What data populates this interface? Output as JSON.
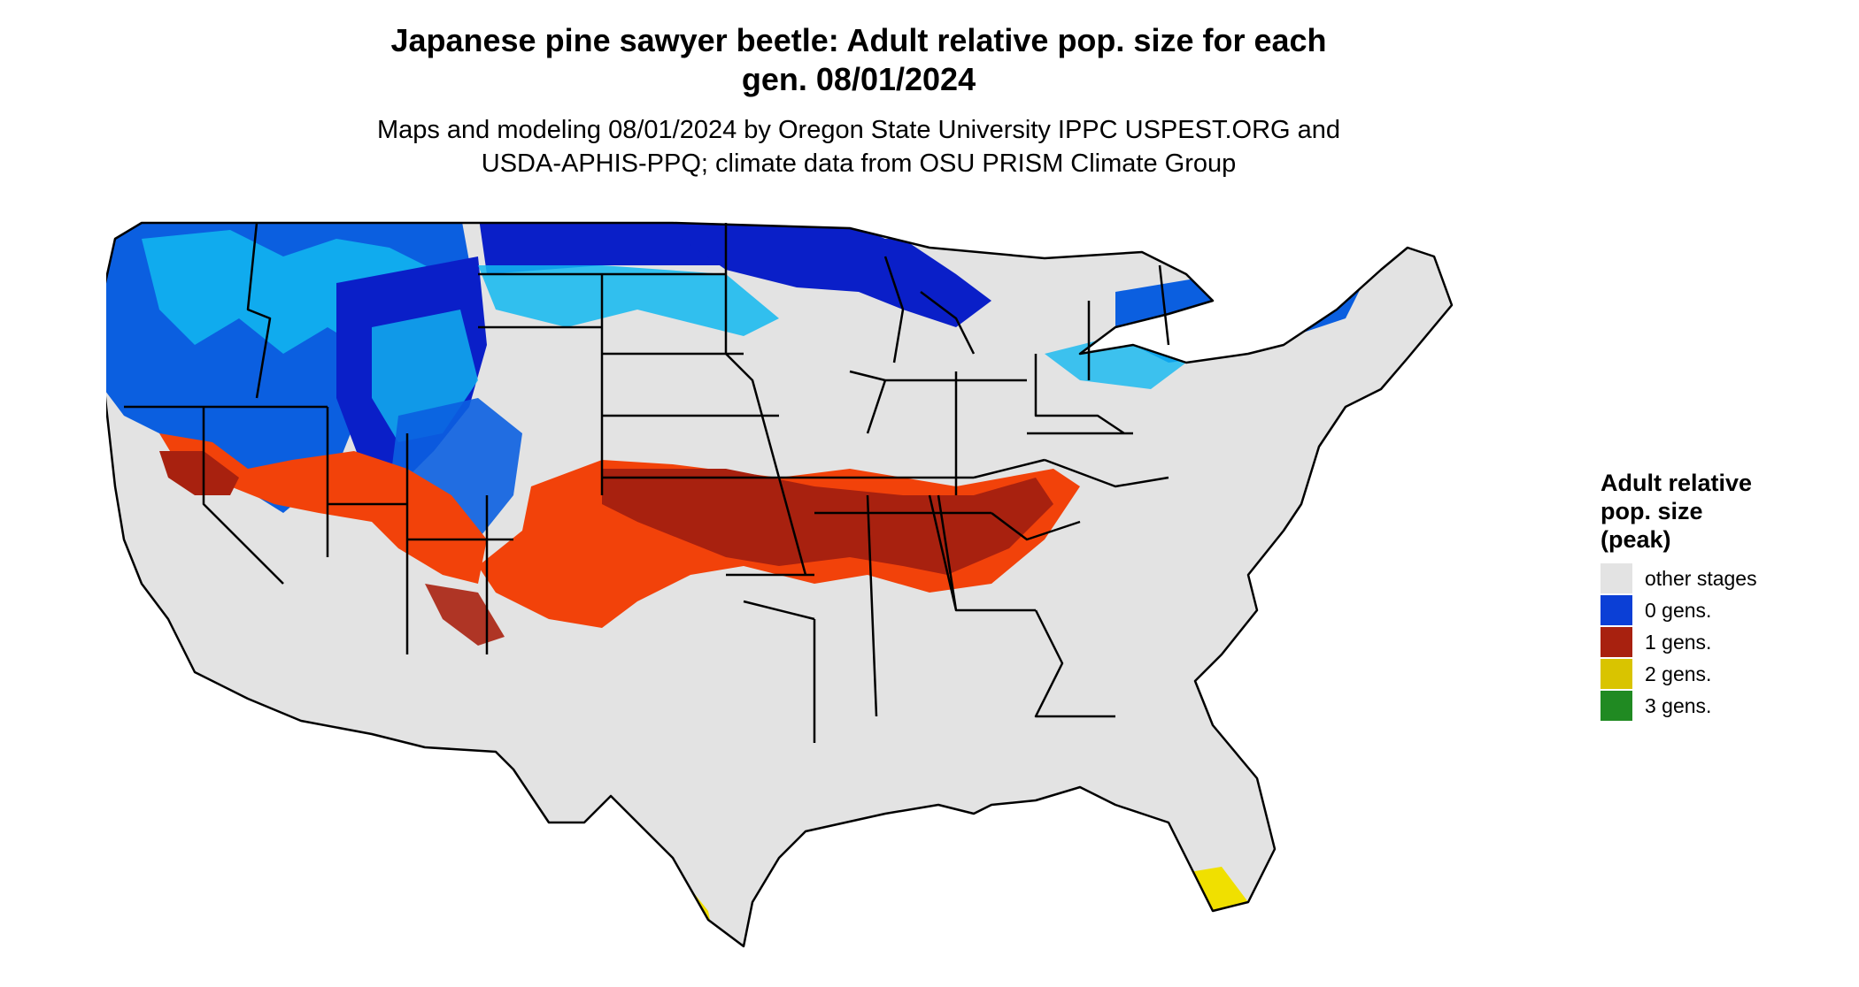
{
  "title_line1": "Japanese pine sawyer beetle: Adult relative pop. size for each",
  "title_line2": "gen. 08/01/2024",
  "subtitle_line1": "Maps and modeling 08/01/2024 by Oregon State University IPPC USPEST.ORG and",
  "subtitle_line2": "USDA-APHIS-PPQ; climate data from OSU PRISM Climate Group",
  "legend": {
    "title_line1": "Adult relative",
    "title_line2": "pop. size",
    "title_line3": "(peak)",
    "items": [
      {
        "label": "other stages",
        "color": "#e3e3e3"
      },
      {
        "label": "0 gens.",
        "color": "#0b3fd6"
      },
      {
        "label": "1 gens.",
        "color": "#a8210f"
      },
      {
        "label": "2 gens.",
        "color": "#d9c400"
      },
      {
        "label": "3 gens.",
        "color": "#208a22"
      }
    ]
  },
  "map_colors": {
    "background_land": "#e3e3e3",
    "cold_light": "#12b8f0",
    "cold_mid": "#0b5fe0",
    "cold_dark": "#0a1fc8",
    "warm_orange": "#f2420a",
    "warm_red": "#a8210f",
    "hot_yellow": "#f0e000",
    "state_lines": "#000000"
  }
}
